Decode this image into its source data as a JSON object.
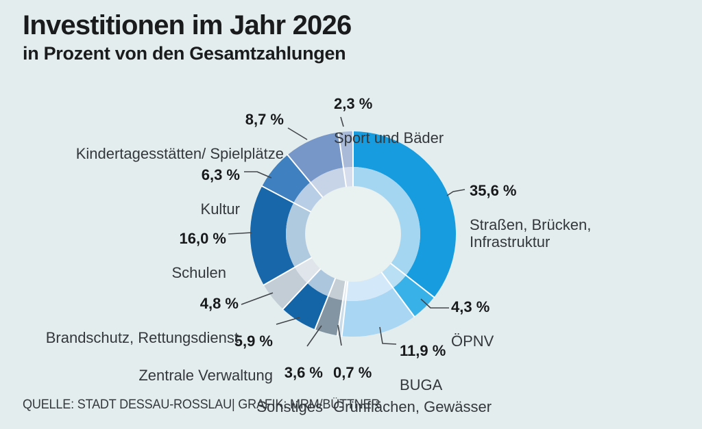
{
  "header": {
    "title": "Investitionen im Jahr 2026",
    "subtitle": "in Prozent von den Gesamtzahlungen"
  },
  "footer": {
    "source": "QUELLE: STADT DESSAU-ROSSLAU| GRAFIK: MRM/BÜTTNER"
  },
  "chart_data": {
    "type": "pie",
    "variant": "donut",
    "title": "Investitionen im Jahr 2026",
    "subtitle": "in Prozent von den Gesamtzahlungen",
    "unit": "%",
    "direction": "clockwise",
    "start_angle_deg": 0,
    "segments": [
      {
        "name": "Straßen, Brücken,\nInfrastruktur",
        "value": 35.6,
        "value_label": "35,6 %",
        "color": "#169CDF",
        "inner_color": "#A5D6F1"
      },
      {
        "name": "ÖPNV",
        "value": 4.3,
        "value_label": "4,3 %",
        "color": "#38B1E8",
        "inner_color": "#B9DFF4"
      },
      {
        "name": "BUGA",
        "value": 11.9,
        "value_label": "11,9 %",
        "color": "#A9D6F3",
        "inner_color": "#D3E9F9"
      },
      {
        "name": "Grünflächen, Gewässer",
        "value": 0.7,
        "value_label": "0,7 %",
        "color": "#CBDCE8",
        "inner_color": "#E1EAF0"
      },
      {
        "name": "Sonstiges",
        "value": 3.6,
        "value_label": "3,6 %",
        "color": "#8395A2",
        "inner_color": "#C6CED5"
      },
      {
        "name": "Zentrale Verwaltung",
        "value": 5.9,
        "value_label": "5,9 %",
        "color": "#1465A8",
        "inner_color": "#ACC6DE"
      },
      {
        "name": "Brandschutz, Rettungsdienst",
        "value": 4.8,
        "value_label": "4,8 %",
        "color": "#C2CDD6",
        "inner_color": "#DFE5EA"
      },
      {
        "name": "Schulen",
        "value": 16.0,
        "value_label": "16,0 %",
        "color": "#1767AA",
        "inner_color": "#AFC9DF"
      },
      {
        "name": "Kultur",
        "value": 6.3,
        "value_label": "6,3 %",
        "color": "#3E80C0",
        "inner_color": "#B7CEE6"
      },
      {
        "name": "Kindertagesstätten/ Spielplätze",
        "value": 8.7,
        "value_label": "8,7 %",
        "color": "#7797C8",
        "inner_color": "#C7D3E7"
      },
      {
        "name": "Sport und Bäder",
        "value": 2.3,
        "value_label": "2,3 %",
        "color": "#A8BAD8",
        "inner_color": "#D6DDEC"
      }
    ],
    "colors": {
      "background": "#e4edee",
      "hole": "#eaf1f1",
      "separator": "#ffffff",
      "leader_line": "#41464b"
    }
  }
}
